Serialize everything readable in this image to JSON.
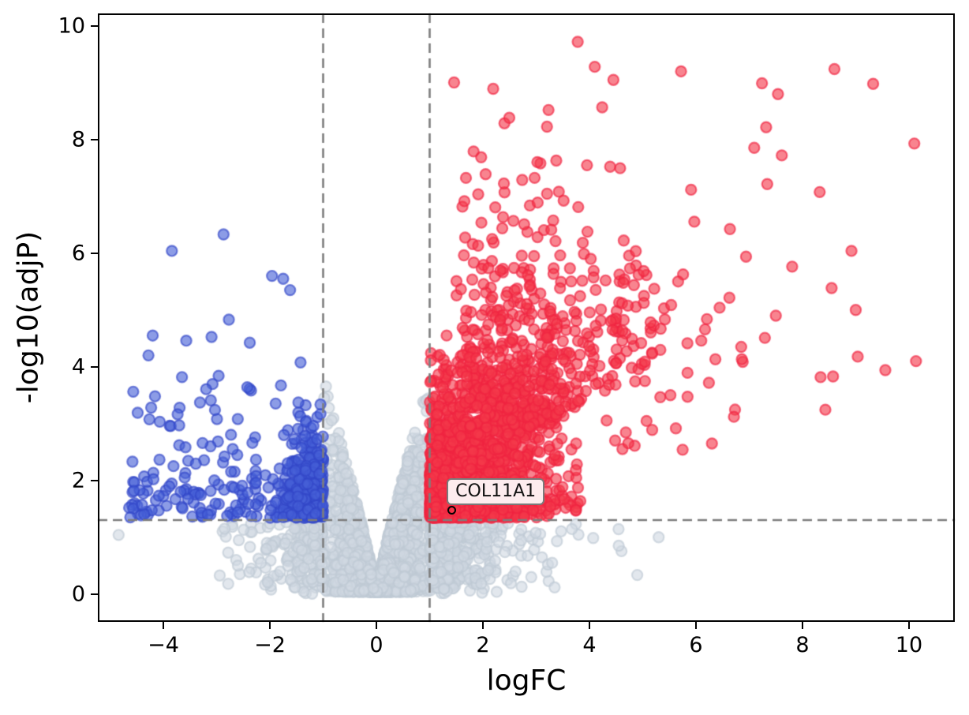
{
  "figure": {
    "background": "#ffffff"
  },
  "chart_data": {
    "type": "scatter",
    "variant": "volcano-plot",
    "title": "",
    "xlabel": "logFC",
    "ylabel": "-log10(adjP)",
    "xlim": [
      -5.23,
      10.86
    ],
    "ylim": [
      -0.49,
      10.22
    ],
    "xticks": [
      -4,
      -2,
      0,
      2,
      4,
      6,
      8,
      10
    ],
    "xtick_labels": [
      "−4",
      "−2",
      "0",
      "2",
      "4",
      "6",
      "8",
      "10"
    ],
    "yticks": [
      0,
      2,
      4,
      6,
      8,
      10
    ],
    "ytick_labels": [
      "0",
      "2",
      "4",
      "6",
      "8",
      "10"
    ],
    "grid": false,
    "legend": "none",
    "thresholds": {
      "logfc_lines": [
        -1,
        1
      ],
      "pvalue_line": 1.301,
      "line_color": "#7d7d7d",
      "line_style": "dashed"
    },
    "series": [
      {
        "name": "up-regulated",
        "color": "#f4384a",
        "edge_color": "#ef2340",
        "alpha": 0.62,
        "approx_count": 2860,
        "x_range": [
          1.0,
          10.2
        ],
        "y_range": [
          1.35,
          9.72
        ]
      },
      {
        "name": "down-regulated",
        "color": "#465fd7",
        "edge_color": "#3246c8",
        "alpha": 0.62,
        "approx_count": 530,
        "x_range": [
          -4.65,
          -1.0
        ],
        "y_range": [
          1.35,
          6.33
        ]
      },
      {
        "name": "not-significant",
        "color": "#d1d9e2",
        "edge_color": "#bfc9d4",
        "alpha": 0.62,
        "approx_count": 3640,
        "x_range": [
          -4.9,
          5.35
        ],
        "y_range": [
          0.0,
          3.9
        ]
      }
    ],
    "generation": {
      "seed": 1234567,
      "marker_radius": 6.6,
      "edge_width": 2.2,
      "groups": {
        "ns_core": {
          "n": 3000,
          "x_mu": 0.08,
          "x_sd": 0.45,
          "x_min": -0.99,
          "x_max": 0.99,
          "env_k": 3.85,
          "env_p": 0.9,
          "y_pow": 1.7,
          "y_base": 0.04
        },
        "ns_right": {
          "n": 430,
          "x_exp": 0.55,
          "x_max": 5.35,
          "y_max": 1.27,
          "y_pow": 0.75
        },
        "ns_left": {
          "n": 210,
          "x_exp": 0.6,
          "x_min": -2.95,
          "y_max": 1.27,
          "y_pow": 0.75
        },
        "down_dense": {
          "n": 400,
          "x_sd": 0.42,
          "x_min": -2.35,
          "y_exp": 0.55,
          "y_cap": 5.65,
          "y_soft": 3.45,
          "y_keep": 0.3
        },
        "down_wing": {
          "n": 130,
          "x_from": -2.2,
          "x_span": 2.45,
          "y_exp": 1.0,
          "y_cap": 6.35,
          "y_soft": 4.6,
          "y_keep": 0.25
        },
        "up_dense": {
          "n": 2150,
          "x_exp": 0.72,
          "x_max": 3.85,
          "y_exp0": 0.52,
          "y_exp_slope": 0.3,
          "y_cap0": 4.3,
          "y_cap_slope": 1.05
        },
        "up_upper": {
          "n": 640,
          "x0": 1.45,
          "x_sd": 1.35,
          "x_max": 7.1,
          "y0": 1.2,
          "y_slope": 0.55,
          "y_exp": 1.35,
          "y_cap": 9.75
        },
        "up_far": {
          "n": 70,
          "x0": 4.3,
          "x_exp": 1.7,
          "x_max": 10.3,
          "y_min": 2.4,
          "y_cap": 9.6
        }
      }
    },
    "landmarks": {
      "up": [
        [
          3.78,
          9.72
        ],
        [
          4.1,
          9.28
        ],
        [
          4.45,
          9.05
        ],
        [
          5.72,
          9.2
        ],
        [
          7.24,
          8.99
        ],
        [
          7.54,
          8.8
        ],
        [
          8.6,
          9.24
        ],
        [
          10.1,
          7.93
        ],
        [
          8.92,
          6.04
        ],
        [
          9.0,
          5.0
        ],
        [
          7.5,
          4.9
        ],
        [
          6.85,
          4.35
        ],
        [
          6.1,
          4.46
        ],
        [
          6.3,
          2.65
        ],
        [
          5.75,
          2.54
        ]
      ],
      "down": [
        [
          -2.87,
          6.33
        ],
        [
          -3.84,
          6.04
        ],
        [
          -1.96,
          5.6
        ],
        [
          -1.75,
          5.55
        ],
        [
          -1.62,
          5.35
        ],
        [
          -4.2,
          4.55
        ],
        [
          -3.57,
          4.46
        ],
        [
          -2.77,
          4.83
        ],
        [
          -4.28,
          4.2
        ],
        [
          -4.58,
          2.33
        ],
        [
          -4.4,
          1.57
        ],
        [
          -3.6,
          2.05
        ]
      ],
      "ns": [
        [
          -4.84,
          1.04
        ],
        [
          5.3,
          1.0
        ],
        [
          4.55,
          0.85
        ],
        [
          3.3,
          0.55
        ],
        [
          -2.6,
          0.5
        ],
        [
          -2.85,
          1.15
        ]
      ]
    },
    "annotation": {
      "label": "COL11A1",
      "x": 1.41,
      "y": 1.47
    }
  }
}
